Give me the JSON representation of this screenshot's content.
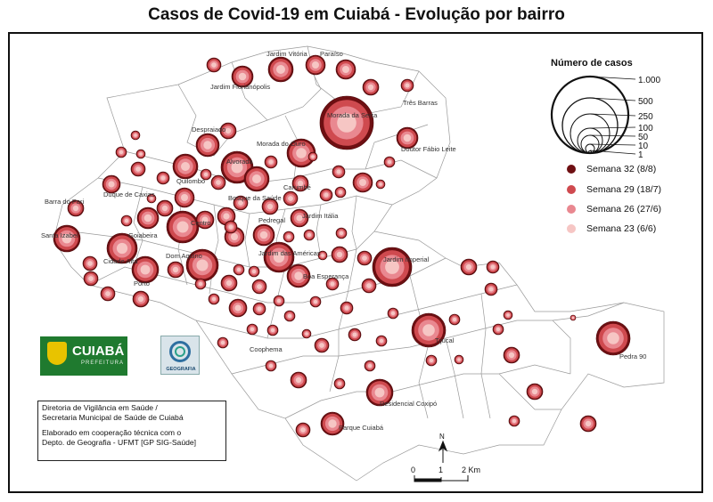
{
  "title": "Casos de Covid-19 em Cuiabá - Evolução por bairro",
  "legend": {
    "title": "Número de casos",
    "size_labels": [
      "1.000",
      "500",
      "250",
      "100",
      "50",
      "10",
      "1"
    ],
    "weeks": [
      {
        "label": "Semana 32 (8/8)",
        "color": "#6e0f12"
      },
      {
        "label": "Semana 29 (18/7)",
        "color": "#cf4a4f"
      },
      {
        "label": "Semana 26 (27/6)",
        "color": "#e98890"
      },
      {
        "label": "Semana 23 (6/6)",
        "color": "#f6c6c4"
      }
    ]
  },
  "neighborhoods": [
    {
      "name": "Jardim Vitória"
    },
    {
      "name": "Paraíso"
    },
    {
      "name": "Jardim Florianópolis"
    },
    {
      "name": "Três Barras"
    },
    {
      "name": "Morada da Serra"
    },
    {
      "name": "Despraiado"
    },
    {
      "name": "Morada do Ouro"
    },
    {
      "name": "Doutor Fábio Leite"
    },
    {
      "name": "Alvorada"
    },
    {
      "name": "Quilombo"
    },
    {
      "name": "Duque de Caxias"
    },
    {
      "name": "Carumbé"
    },
    {
      "name": "Bosque da Saúde"
    },
    {
      "name": "Barra do Pari"
    },
    {
      "name": "Jardim Itália"
    },
    {
      "name": "Pedregal"
    },
    {
      "name": "Centro"
    },
    {
      "name": "Santa Izabel"
    },
    {
      "name": "Goiabeira"
    },
    {
      "name": "Cidade Alta"
    },
    {
      "name": "Dom Aquino"
    },
    {
      "name": "Jardim das Américas"
    },
    {
      "name": "Jardim Imperial"
    },
    {
      "name": "Porto"
    },
    {
      "name": "Boa Esperança"
    },
    {
      "name": "Tijucal"
    },
    {
      "name": "Coophema"
    },
    {
      "name": "Pedra 90"
    },
    {
      "name": "Residencial Coxipó"
    },
    {
      "name": "Parque Cuiabá"
    }
  ],
  "credits": {
    "line1": "Diretoria de Vigilância em Saúde /",
    "line2": "Secretaria Municipal de Saúde de Cuiabá",
    "line3": "Elaborado em cooperação técnica com o",
    "line4": "Depto. de Geografia - UFMT [GP SIG-Saúde]"
  },
  "logos": {
    "cuiaba_name": "CUIABÁ",
    "cuiaba_sub": "PREFEITURA",
    "geografia": "GEOGRAFIA"
  },
  "scale": {
    "north": "N",
    "labels": [
      "0",
      "1",
      "2 Km"
    ]
  }
}
